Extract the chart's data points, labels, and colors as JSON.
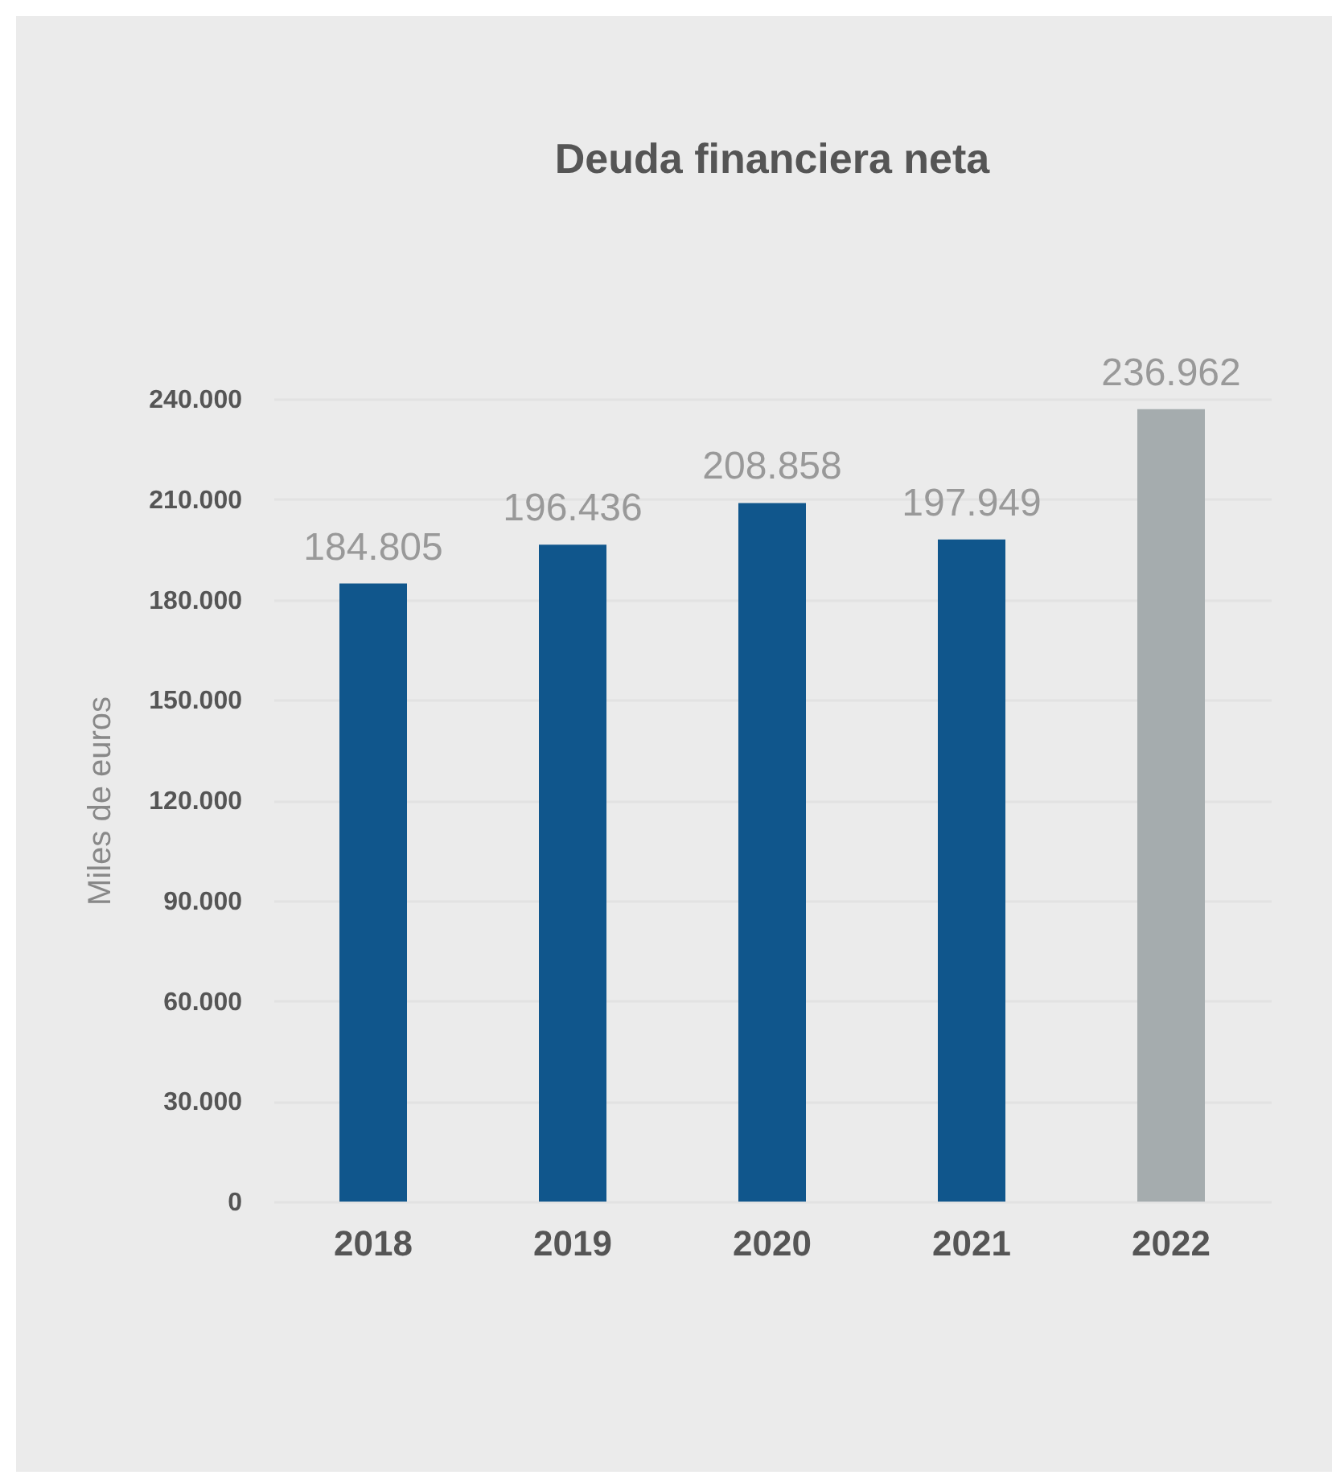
{
  "chart_data": {
    "type": "bar",
    "title": "Deuda financiera neta",
    "ylabel": "Miles de euros",
    "categories": [
      "2018",
      "2019",
      "2020",
      "2021",
      "2022"
    ],
    "values": [
      184805,
      196436,
      208858,
      197949,
      236962
    ],
    "colors": [
      "#10568c",
      "#10568c",
      "#10568c",
      "#10568c",
      "#a5acae"
    ],
    "value_labels": [
      "184.805",
      "196.436",
      "208.858",
      "197.949",
      "236.962"
    ],
    "ylim": [
      0,
      240000
    ],
    "yticks": [
      {
        "value": 0,
        "label": "0"
      },
      {
        "value": 30000,
        "label": "30.000"
      },
      {
        "value": 60000,
        "label": "60.000"
      },
      {
        "value": 90000,
        "label": "90.000"
      },
      {
        "value": 120000,
        "label": "120.000"
      },
      {
        "value": 150000,
        "label": "150.000"
      },
      {
        "value": 180000,
        "label": "180.000"
      },
      {
        "value": 210000,
        "label": "210.000"
      },
      {
        "value": 240000,
        "label": "240.000"
      }
    ],
    "grid": "y"
  }
}
